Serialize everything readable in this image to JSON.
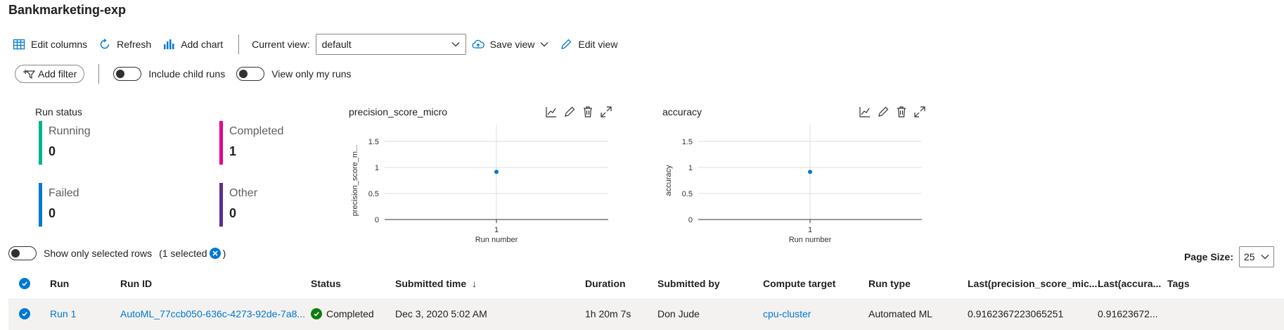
{
  "page": {
    "title": "Bankmarketing-exp"
  },
  "toolbar": {
    "edit_columns": "Edit columns",
    "refresh": "Refresh",
    "add_chart": "Add chart",
    "current_view_label": "Current view:",
    "current_view_value": "default",
    "save_view": "Save view",
    "edit_view": "Edit view"
  },
  "filters": {
    "add_filter": "Add filter",
    "include_child_runs": "Include child runs",
    "view_only_my_runs": "View only my runs"
  },
  "run_status": {
    "title": "Run status",
    "items": [
      {
        "label": "Running",
        "value": "0",
        "color": "#00b294"
      },
      {
        "label": "Completed",
        "value": "1",
        "color": "#e3008c"
      },
      {
        "label": "Failed",
        "value": "0",
        "color": "#0078d4"
      },
      {
        "label": "Other",
        "value": "0",
        "color": "#5c2d91"
      }
    ]
  },
  "charts": [
    {
      "title": "precision_score_micro",
      "ylabel_display": "precision_score_m...",
      "xlabel": "Run number"
    },
    {
      "title": "accuracy",
      "ylabel_display": "accuracy",
      "xlabel": "Run number"
    }
  ],
  "chart_data": [
    {
      "type": "scatter",
      "title": "precision_score_micro",
      "xlabel": "Run number",
      "ylabel": "precision_score_m...",
      "x": [
        1
      ],
      "y": [
        0.916
      ],
      "yticks": [
        "0",
        "0.5",
        "1",
        "1.5"
      ],
      "xticks": [
        "1"
      ],
      "ylim": [
        0,
        1.5
      ],
      "grid": true,
      "color": "#0078d4"
    },
    {
      "type": "scatter",
      "title": "accuracy",
      "xlabel": "Run number",
      "ylabel": "accuracy",
      "x": [
        1
      ],
      "y": [
        0.916
      ],
      "yticks": [
        "0",
        "0.5",
        "1",
        "1.5"
      ],
      "xticks": [
        "1"
      ],
      "ylim": [
        0,
        1.5
      ],
      "grid": true,
      "color": "#0078d4"
    }
  ],
  "selection": {
    "show_only_selected": "Show only selected rows",
    "selected_count": "(1 selected",
    "close_paren": ")"
  },
  "pagination": {
    "label": "Page Size:",
    "value": "25"
  },
  "table": {
    "headers": {
      "run": "Run",
      "run_id": "Run ID",
      "status": "Status",
      "submitted_time": "Submitted time",
      "sort_arrow": "↓",
      "duration": "Duration",
      "submitted_by": "Submitted by",
      "compute_target": "Compute target",
      "run_type": "Run type",
      "last_precision": "Last(precision_score_mic...",
      "last_accuracy": "Last(accura...",
      "tags": "Tags"
    },
    "rows": [
      {
        "run": "Run 1",
        "run_id": "AutoML_77ccb050-636c-4273-92de-7a8...",
        "status": "Completed",
        "submitted_time": "Dec 3, 2020 5:02 AM",
        "duration": "1h 20m 7s",
        "submitted_by": "Don Jude",
        "compute_target": "cpu-cluster",
        "run_type": "Automated ML",
        "last_precision": "0.9162367223065251",
        "last_accuracy": "0.91623672..."
      }
    ]
  },
  "colors": {
    "accent": "#0078d4",
    "success": "#107c10"
  }
}
